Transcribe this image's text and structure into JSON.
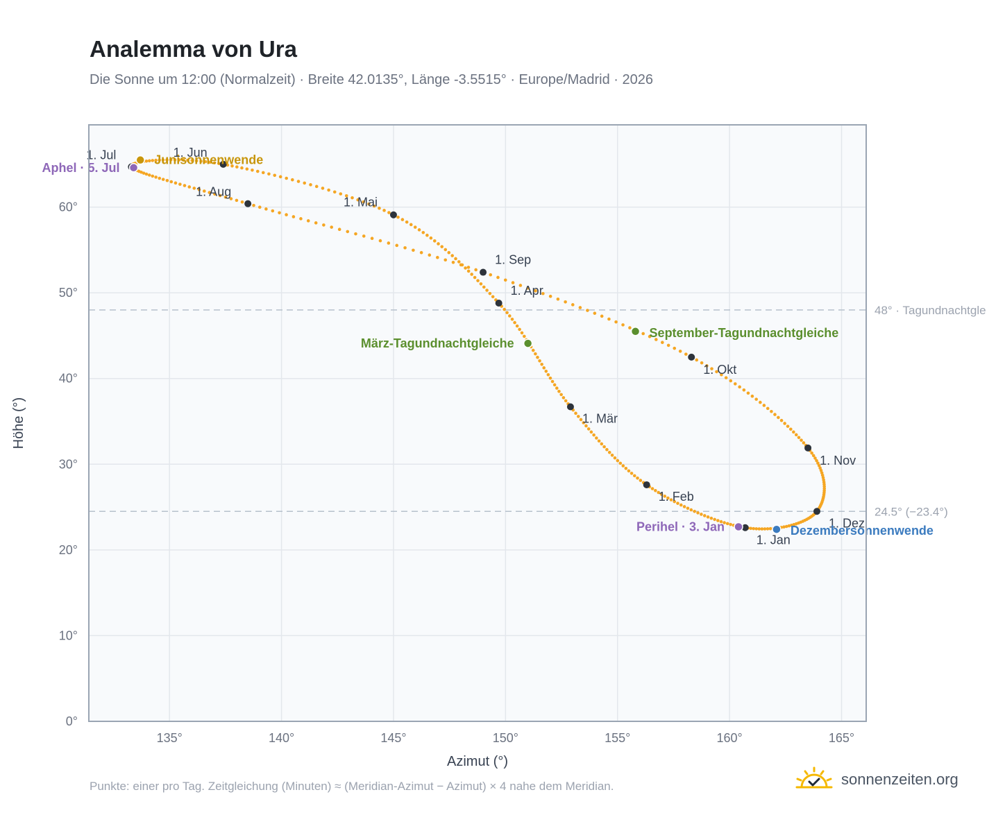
{
  "title": "Analemma von Ura",
  "subtitle": "Die Sonne um 12:00 (Normalzeit) · Breite 42.0135°, Länge -3.5515° · Europe/Madrid · 2026",
  "footnote": "Punkte: einer pro Tag. Zeitgleichung (Minuten) ≈ (Meridian-Azimut − Azimut) × 4 nahe dem Meridian.",
  "brand": {
    "name": "sonnenzeiten.org",
    "icon": "sun-check-icon"
  },
  "colors": {
    "curve": "#f5a623",
    "month_marker": "#2d333b",
    "solstice_june": "#c8960c",
    "solstice_december": "#3b7bbf",
    "equinox": "#5b8f2e",
    "apsis": "#8e67b8",
    "reference_line": "#b6c1cc",
    "plot_bg": "#f8fafc"
  },
  "chart_data": {
    "type": "scatter",
    "title": "Analemma von Ura",
    "xlabel": "Azimut (°)",
    "ylabel": "Höhe (°)",
    "xlim": [
      131.4,
      166.1
    ],
    "ylim": [
      0,
      69.6
    ],
    "xticks": [
      135,
      140,
      145,
      150,
      155,
      160,
      165
    ],
    "yticks": [
      0,
      10,
      20,
      30,
      40,
      50,
      60
    ],
    "xtick_labels": [
      "135°",
      "140°",
      "145°",
      "150°",
      "155°",
      "160°",
      "165°"
    ],
    "ytick_labels": [
      "0°",
      "10°",
      "20°",
      "30°",
      "40°",
      "50°",
      "60°"
    ],
    "grid": true,
    "months": [
      {
        "label": "1. Jan",
        "az": 160.7,
        "alt": 22.6
      },
      {
        "label": "1. Feb",
        "az": 156.3,
        "alt": 27.6
      },
      {
        "label": "1. Mär",
        "az": 152.9,
        "alt": 36.7
      },
      {
        "label": "1. Apr",
        "az": 149.7,
        "alt": 48.8
      },
      {
        "label": "1. Mai",
        "az": 145.0,
        "alt": 59.1
      },
      {
        "label": "1. Jun",
        "az": 137.4,
        "alt": 65.0
      },
      {
        "label": "1. Jul",
        "az": 133.3,
        "alt": 64.7
      },
      {
        "label": "1. Aug",
        "az": 138.5,
        "alt": 60.4
      },
      {
        "label": "1. Sep",
        "az": 149.0,
        "alt": 52.4
      },
      {
        "label": "1. Okt",
        "az": 158.3,
        "alt": 42.5
      },
      {
        "label": "1. Nov",
        "az": 163.5,
        "alt": 31.9
      },
      {
        "label": "1. Dez",
        "az": 163.9,
        "alt": 24.5
      }
    ],
    "events": [
      {
        "label": "Junisonnenwende",
        "az": 133.7,
        "alt": 65.5,
        "kind": "solstice_june"
      },
      {
        "label": "Dezembersonnenwende",
        "az": 162.1,
        "alt": 22.4,
        "kind": "solstice_december"
      },
      {
        "label": "März-Tagundnachtgleiche",
        "az": 151.0,
        "alt": 44.1,
        "kind": "equinox"
      },
      {
        "label": "September-Tagundnachtgleiche",
        "az": 155.8,
        "alt": 45.5,
        "kind": "equinox"
      },
      {
        "label": "Aphel · 5. Jul",
        "az": 133.4,
        "alt": 64.6,
        "kind": "apsis"
      },
      {
        "label": "Perihel · 3. Jan",
        "az": 160.4,
        "alt": 22.7,
        "kind": "apsis"
      }
    ],
    "reference_lines": [
      {
        "alt": 48,
        "label": "48° · Tagundnachtgle"
      },
      {
        "alt": 24.5,
        "label": "24.5° (−23.4°)"
      }
    ]
  }
}
